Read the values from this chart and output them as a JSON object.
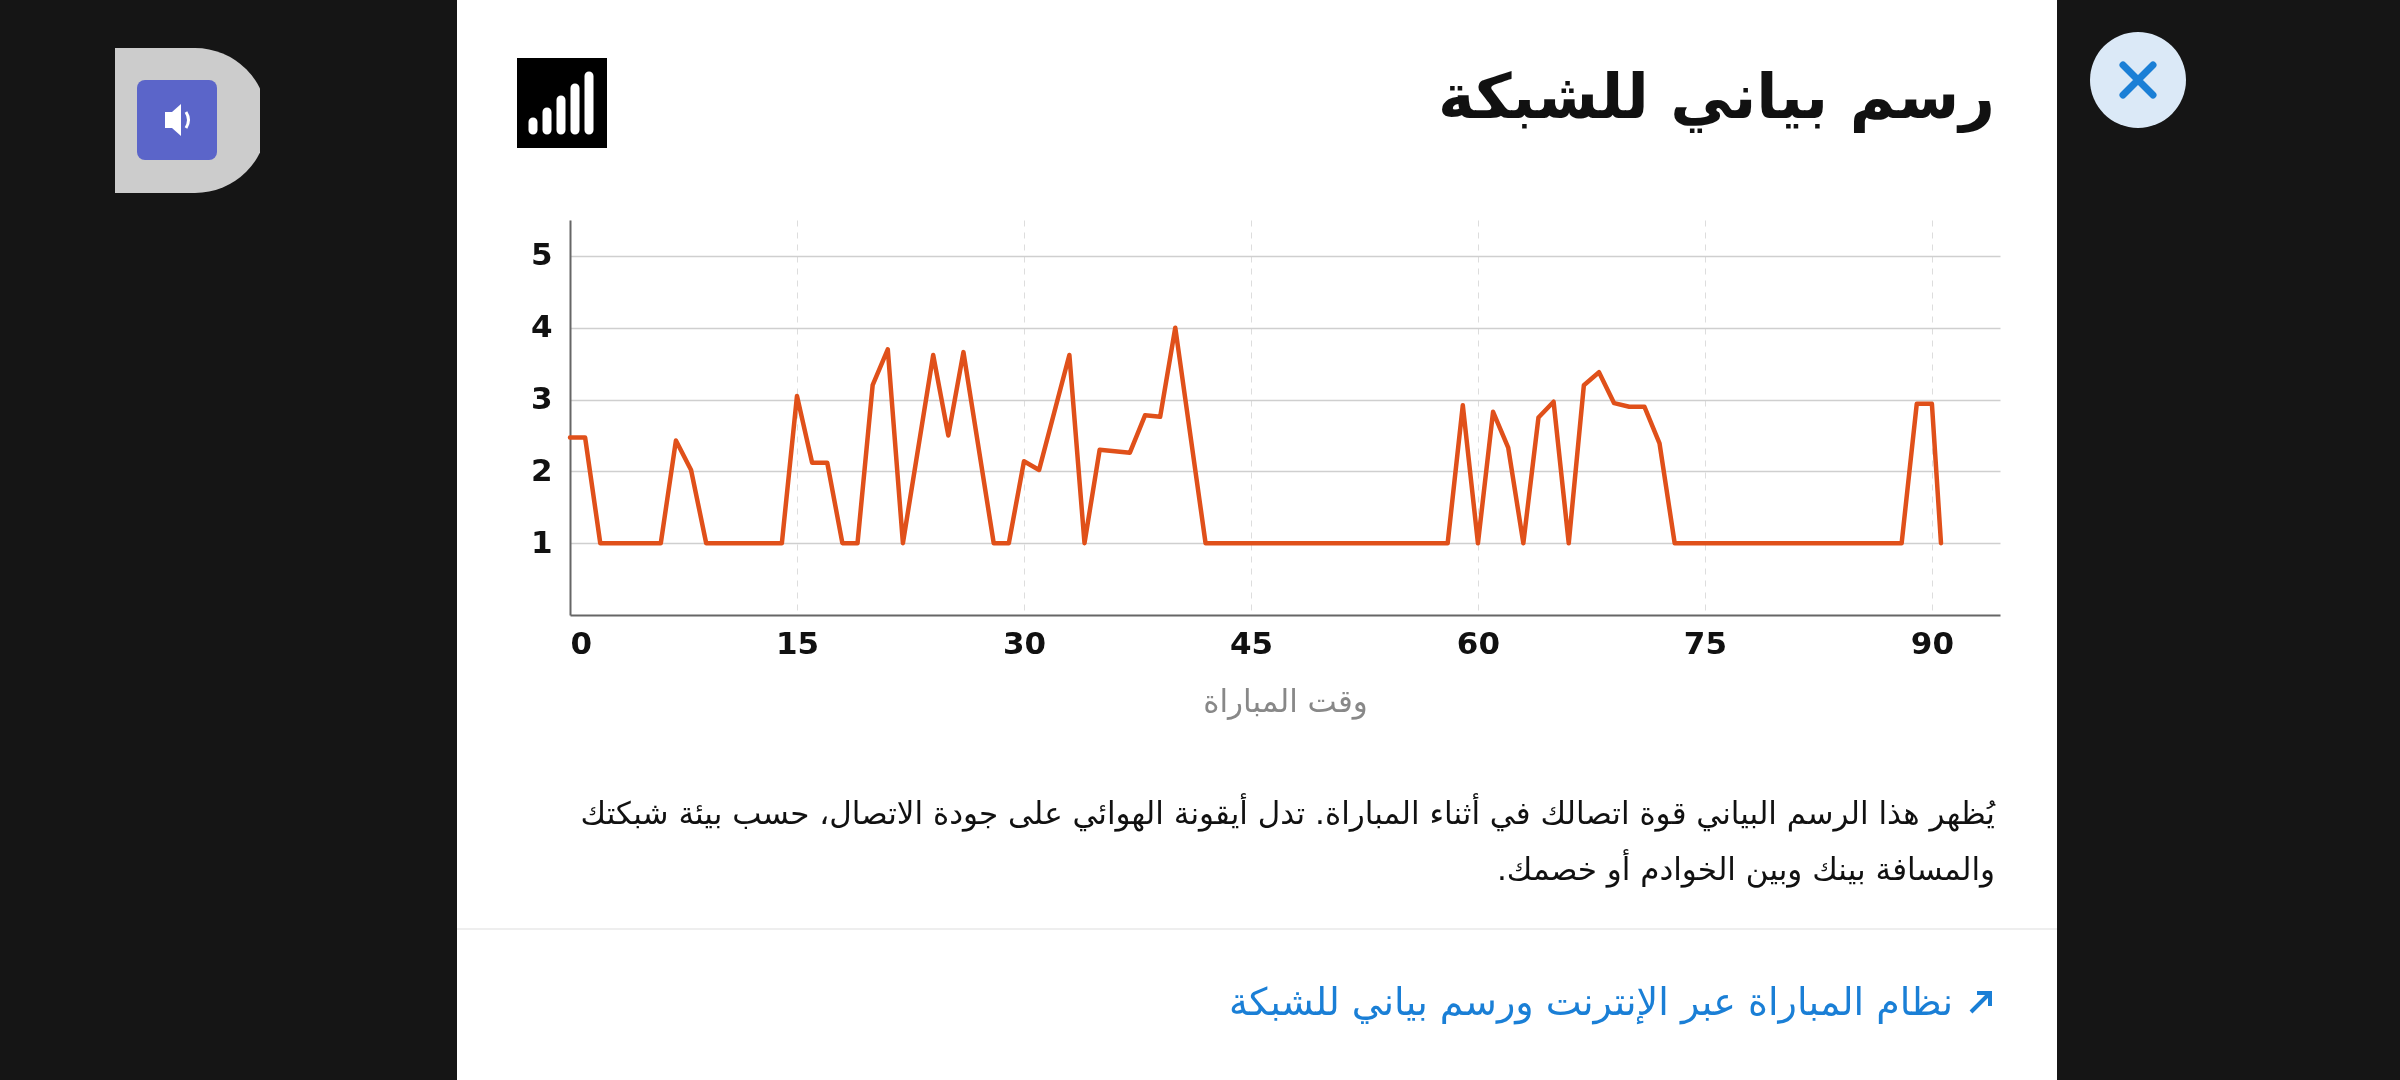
{
  "chart_data": {
    "type": "line",
    "title": "رسم بياني للشبكة",
    "xlabel": "وقت المباراة",
    "x": [
      0,
      1,
      2,
      6,
      7,
      8,
      9,
      14,
      15,
      16,
      17,
      18,
      19,
      20,
      21,
      22,
      24,
      25,
      26,
      28,
      29,
      30,
      31,
      33,
      34,
      35,
      37,
      38,
      39,
      40,
      42,
      58,
      59,
      60,
      61,
      62,
      63,
      64,
      65,
      66,
      67,
      68,
      69,
      70,
      71,
      72,
      73,
      88,
      89,
      90,
      90.6
    ],
    "series": [
      {
        "color": "#e0501a",
        "values": [
          2.47,
          2.47,
          1,
          1,
          2.43,
          2.02,
          1,
          1,
          3.05,
          2.12,
          2.12,
          1,
          1,
          3.2,
          3.7,
          1,
          3.62,
          2.5,
          3.66,
          1,
          1,
          2.14,
          2.02,
          3.62,
          1,
          2.3,
          2.26,
          2.78,
          2.76,
          4.0,
          1,
          1,
          2.92,
          1,
          2.83,
          2.33,
          1,
          2.75,
          2.97,
          1,
          3.2,
          3.38,
          2.95,
          2.9,
          2.9,
          2.39,
          1,
          1,
          2.94,
          2.94,
          1
        ]
      }
    ],
    "xlim": [
      0,
      94.5
    ],
    "xticks": [
      0,
      15,
      30,
      45,
      60,
      75,
      90
    ],
    "ylim": [
      0,
      5.5
    ],
    "yticks": [
      1,
      2,
      3,
      4,
      5
    ],
    "grid": true,
    "marker": "none",
    "line_style": "solid",
    "annotations": [
      "يُظهر هذا الرسم البياني قوة اتصالك في أثناء المباراة. تدل أيقونة الهوائي على جودة الاتصال، حسب بيئة شبكتك والمسافة بينك وبين الخوادم أو خصمك.",
      "نظام المباراة عبر الإنترنت ورسم بياني للشبكة"
    ]
  }
}
